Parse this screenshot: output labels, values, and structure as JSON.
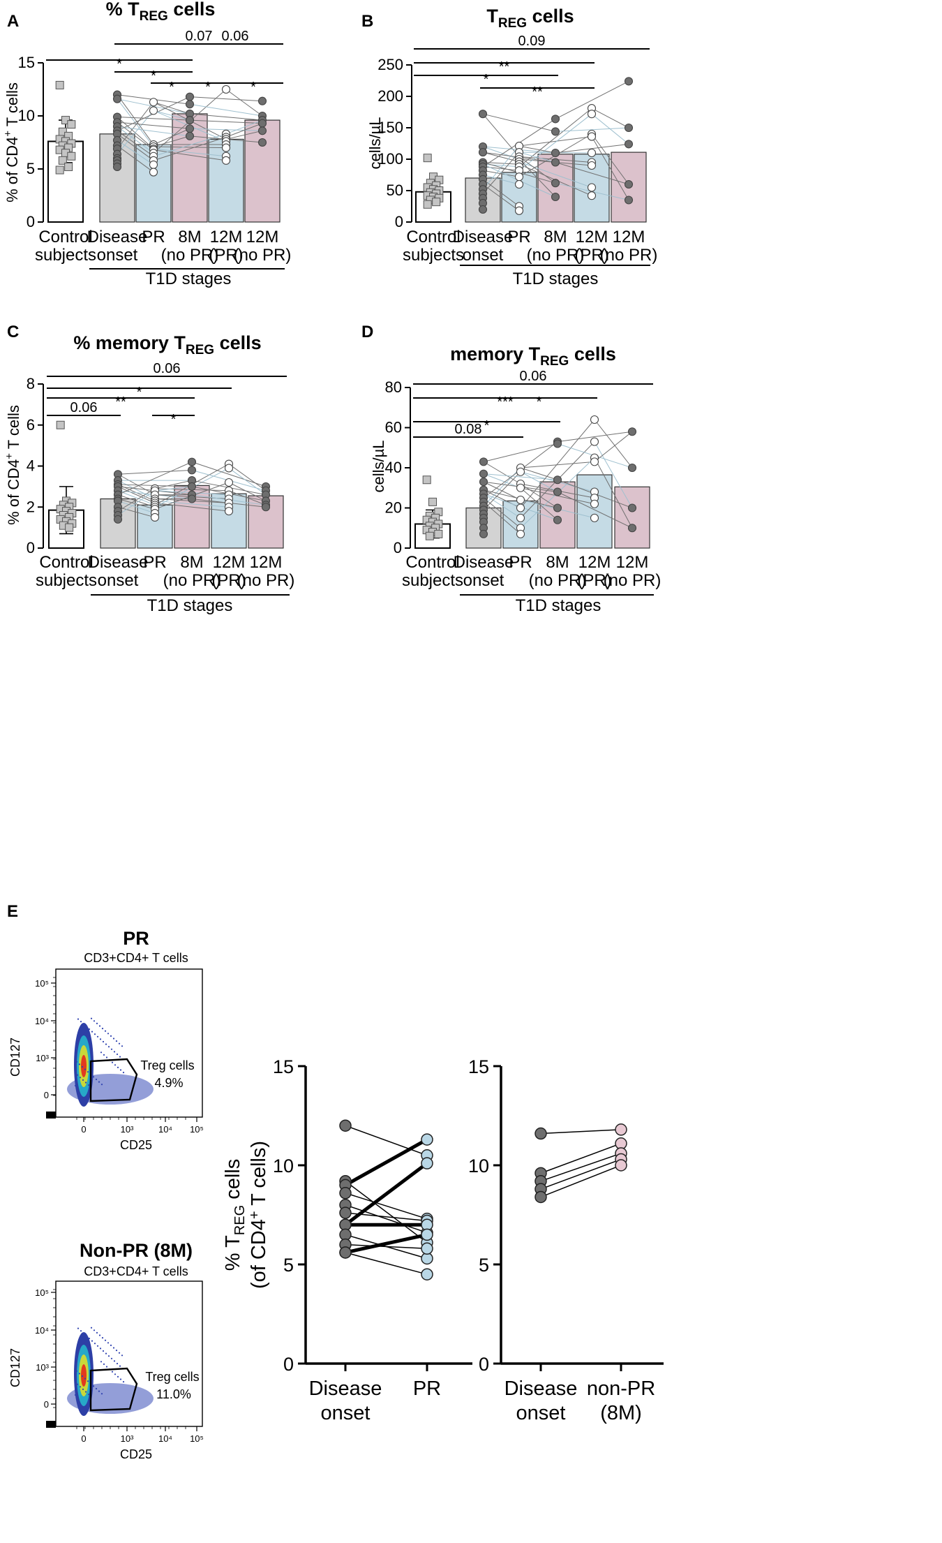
{
  "figure": {
    "colors": {
      "control": "#ffffff",
      "onset": "#d3d3d3",
      "pr": "#c5dbe5",
      "nopr": "#dcc2cc",
      "dot_dark": "#6e6e6e",
      "square": "#c4c4c4",
      "line_dark": "#707070",
      "line_blue": "#9fc0cf",
      "pr_circle": "#b9d7e6",
      "nopr_circle": "#e8c9d3"
    },
    "group_labels": {
      "g0": [
        "Control",
        "subjects"
      ],
      "g1": [
        "Disease",
        "onset"
      ],
      "g2": [
        "PR",
        ""
      ],
      "g3": [
        "8M",
        "(no PR)"
      ],
      "g4": [
        "12M",
        "(PR)"
      ],
      "g5": [
        "12M",
        "(no PR)"
      ]
    },
    "t1d_label": "T1D stages"
  },
  "chart_data": [
    {
      "panel": "A",
      "type": "bar",
      "title_main": "% T",
      "title_sub": "REG",
      "title_end": " cells",
      "ylabel_pre": "% of CD4",
      "ylabel_sup": "+",
      "ylabel_post": " T cells",
      "ylim": [
        0,
        15
      ],
      "yticks": [
        "0",
        "5",
        "10",
        "15"
      ],
      "values": [
        7.6,
        8.3,
        7.3,
        10.2,
        7.8,
        9.6
      ],
      "control_sd": 2.0,
      "control_points": [
        12.9,
        9.6,
        9.2,
        8.5,
        8.1,
        7.8,
        7.6,
        7.4,
        7.2,
        7.0,
        6.8,
        6.5,
        6.2,
        5.8,
        5.2,
        4.9
      ],
      "onset_points": [
        12.0,
        11.6,
        9.9,
        9.4,
        9.0,
        8.6,
        8.3,
        7.7,
        7.2,
        6.9,
        6.4,
        6.0,
        5.8,
        5.5,
        5.2
      ],
      "pr_points": [
        11.3,
        10.5,
        7.3,
        7.1,
        6.9,
        6.8,
        6.5,
        6.2,
        5.8,
        5.4,
        4.7
      ],
      "m8_points": [
        11.8,
        11.1,
        10.2,
        9.6,
        8.8,
        8.1
      ],
      "m12pr_points": [
        12.5,
        8.3,
        8.0,
        7.8,
        7.6,
        7.3,
        7.0,
        6.2,
        5.8
      ],
      "m12nopr_points": [
        11.4,
        10.0,
        9.6,
        9.3,
        8.6,
        7.5
      ],
      "comparisons": [
        {
          "label": "0.07",
          "from": 1,
          "to": 5
        },
        {
          "label": "*",
          "from": 0,
          "to": 3
        },
        {
          "label": "0.06",
          "from": 3,
          "to": 5
        },
        {
          "label": "*",
          "from": 1,
          "to": 3
        },
        {
          "label": "*",
          "from": 2,
          "to": 3
        },
        {
          "label": "*",
          "from": 3,
          "to": 4
        },
        {
          "label": "*",
          "from": 4,
          "to": 5
        }
      ]
    },
    {
      "panel": "B",
      "type": "bar",
      "title_main": "T",
      "title_sub": "REG",
      "title_end": " cells",
      "ylabel_pre": "cells/µL",
      "ylabel_sup": "",
      "ylabel_post": "",
      "ylim": [
        0,
        250
      ],
      "yticks": [
        "0",
        "50",
        "100",
        "150",
        "200",
        "250"
      ],
      "values": [
        48,
        70,
        79,
        108,
        108,
        111
      ],
      "control_sd": 12,
      "control_points": [
        102,
        72,
        67,
        62,
        58,
        55,
        52,
        50,
        47,
        45,
        42,
        40,
        38,
        35,
        32,
        28
      ],
      "onset_points": [
        172,
        120,
        111,
        95,
        92,
        88,
        82,
        75,
        68,
        60,
        52,
        45,
        38,
        30,
        20
      ],
      "pr_points": [
        121,
        111,
        104,
        100,
        96,
        92,
        88,
        82,
        72,
        60,
        25,
        18
      ],
      "m8_points": [
        164,
        144,
        110,
        95,
        62,
        40
      ],
      "m12pr_points": [
        181,
        172,
        140,
        136,
        110,
        95,
        90,
        55,
        42
      ],
      "m12nopr_points": [
        224,
        150,
        124,
        60,
        35
      ],
      "comparisons": [
        {
          "label": "0.09",
          "from": 0,
          "to": 5
        },
        {
          "label": "**",
          "from": 0,
          "to": 4
        },
        {
          "label": "*",
          "from": 0,
          "to": 3
        },
        {
          "label": "**",
          "from": 1,
          "to": 4
        }
      ]
    },
    {
      "panel": "C",
      "type": "bar",
      "title_main": "% memory T",
      "title_sub": "REG",
      "title_end": " cells",
      "ylabel_pre": "% of CD4",
      "ylabel_sup": "+",
      "ylabel_post": " T cells",
      "ylim": [
        0,
        8
      ],
      "yticks": [
        "0",
        "2",
        "4",
        "6",
        "8"
      ],
      "values": [
        1.85,
        2.4,
        2.1,
        3.05,
        2.65,
        2.55
      ],
      "control_sd": 1.15,
      "control_points": [
        6.0,
        2.3,
        2.2,
        2.1,
        2.0,
        1.9,
        1.8,
        1.7,
        1.6,
        1.5,
        1.4,
        1.3,
        1.2,
        1.1,
        1.0
      ],
      "onset_points": [
        3.6,
        3.3,
        3.1,
        3.0,
        2.8,
        2.6,
        2.4,
        2.3,
        2.0,
        1.8,
        1.6,
        1.4
      ],
      "pr_points": [
        2.9,
        2.8,
        2.6,
        2.4,
        2.3,
        2.2,
        2.1,
        2.0,
        1.9,
        1.7,
        1.5
      ],
      "m8_points": [
        4.2,
        3.8,
        3.3,
        3.0,
        2.6,
        2.4
      ],
      "m12pr_points": [
        4.1,
        3.9,
        3.2,
        2.8,
        2.6,
        2.4,
        2.2,
        2.0,
        1.8
      ],
      "m12nopr_points": [
        3.0,
        2.8,
        2.6,
        2.3,
        2.1,
        2.0
      ],
      "comparisons": [
        {
          "label": "0.06",
          "from": 0,
          "to": 5
        },
        {
          "label": "*",
          "from": 0,
          "to": 4
        },
        {
          "label": "**",
          "from": 0,
          "to": 3
        },
        {
          "label": "0.06",
          "from": 0,
          "to": 1
        },
        {
          "label": "*",
          "from": 2,
          "to": 3
        }
      ]
    },
    {
      "panel": "D",
      "type": "bar",
      "title_main": "memory T",
      "title_sub": "REG",
      "title_end": " cells",
      "ylabel_pre": "cells/µL",
      "ylabel_sup": "",
      "ylabel_post": "",
      "ylim": [
        0,
        80
      ],
      "yticks": [
        "0",
        "20",
        "40",
        "60",
        "80"
      ],
      "values": [
        12,
        20,
        23.5,
        33,
        36.5,
        30.5
      ],
      "control_sd": 7,
      "control_points": [
        34,
        23,
        18,
        16,
        15,
        14,
        13,
        12,
        11,
        10,
        9,
        8,
        7,
        6
      ],
      "onset_points": [
        43,
        37,
        33,
        29,
        27,
        25,
        23,
        21,
        19,
        17,
        15,
        13,
        10,
        7
      ],
      "pr_points": [
        40,
        38,
        32,
        30,
        24,
        20,
        15,
        10,
        7
      ],
      "m8_points": [
        53,
        52,
        34,
        28,
        20,
        14
      ],
      "m12pr_points": [
        64,
        53,
        45,
        43,
        28,
        25,
        22,
        15
      ],
      "m12nopr_points": [
        58,
        40,
        20,
        10
      ],
      "comparisons": [
        {
          "label": "0.06",
          "from": 0,
          "to": 5
        },
        {
          "label": "***",
          "from": 0,
          "to": 4
        },
        {
          "label": "*",
          "from": 1,
          "to": 4
        },
        {
          "label": "*",
          "from": 0,
          "to": 3
        },
        {
          "label": "0.08",
          "from": 0,
          "to": 2
        }
      ]
    },
    {
      "panel": "E-left",
      "type": "line",
      "ylabel_main": "% T",
      "ylabel_sub": "REG",
      "ylabel_end": " cells",
      "ylabel2": "(of CD4",
      "ylabel2_sup": "+",
      "ylabel2_end": " T cells)",
      "ylim": [
        0,
        15
      ],
      "yticks": [
        "0",
        "5",
        "10",
        "15"
      ],
      "categories": [
        "Disease|onset",
        "PR|"
      ],
      "pairs": [
        [
          12.0,
          10.5
        ],
        [
          9.2,
          6.1
        ],
        [
          9.0,
          11.3
        ],
        [
          8.6,
          7.3
        ],
        [
          8.0,
          6.6
        ],
        [
          7.6,
          7.2
        ],
        [
          7.0,
          10.1
        ],
        [
          7.0,
          7.0
        ],
        [
          6.5,
          5.3
        ],
        [
          6.0,
          5.8
        ],
        [
          5.6,
          4.5
        ],
        [
          5.6,
          6.5
        ]
      ],
      "bold_pairs": [
        2,
        6,
        7,
        11
      ]
    },
    {
      "panel": "E-right",
      "type": "line",
      "ylim": [
        0,
        15
      ],
      "yticks": [
        "0",
        "5",
        "10",
        "15"
      ],
      "categories": [
        "Disease|onset",
        "non-PR|(8M)"
      ],
      "pairs": [
        [
          11.6,
          11.8
        ],
        [
          9.6,
          11.1
        ],
        [
          9.2,
          10.6
        ],
        [
          8.8,
          10.3
        ],
        [
          8.4,
          10.0
        ]
      ]
    }
  ],
  "panel_e_flow": {
    "plots": [
      {
        "title": "PR",
        "subtitle": "CD3+CD4+ T cells",
        "gate_label": "Treg cells",
        "gate_value": "4.9%",
        "xlabel": "CD25",
        "ylabel": "CD127"
      },
      {
        "title": "Non-PR (8M)",
        "subtitle": "CD3+CD4+ T cells",
        "gate_label": "Treg cells",
        "gate_value": "11.0%",
        "xlabel": "CD25",
        "ylabel": "CD127"
      }
    ],
    "x_ticks": [
      "0",
      "10³",
      "10⁴",
      "10⁵"
    ],
    "y_ticks": [
      "0",
      "10³",
      "10⁴",
      "10⁵"
    ],
    "panel_letter": "E"
  }
}
